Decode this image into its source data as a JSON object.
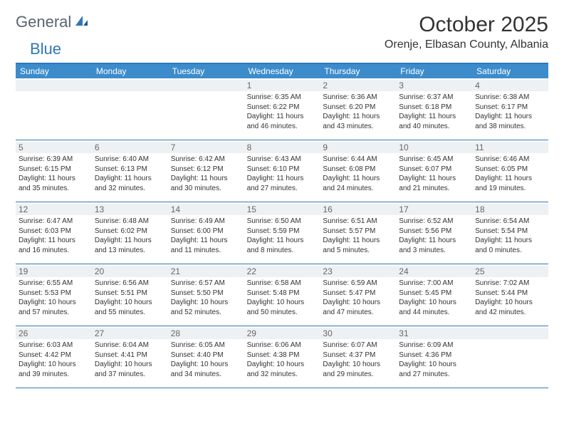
{
  "brand": {
    "part1": "General",
    "part2": "Blue"
  },
  "title": "October 2025",
  "location": "Orenje, Elbasan County, Albania",
  "colors": {
    "header_bar": "#3c8ccc",
    "top_border": "#2f76bb",
    "row_border": "#2f76bb",
    "daynum_bg": "#eef1f4",
    "text": "#333333",
    "logo_gray": "#5a6570",
    "logo_blue": "#2f76bb",
    "background": "#ffffff"
  },
  "days_of_week": [
    "Sunday",
    "Monday",
    "Tuesday",
    "Wednesday",
    "Thursday",
    "Friday",
    "Saturday"
  ],
  "weeks": [
    [
      null,
      null,
      null,
      {
        "n": "1",
        "sr": "Sunrise: 6:35 AM",
        "ss": "Sunset: 6:22 PM",
        "d1": "Daylight: 11 hours",
        "d2": "and 46 minutes."
      },
      {
        "n": "2",
        "sr": "Sunrise: 6:36 AM",
        "ss": "Sunset: 6:20 PM",
        "d1": "Daylight: 11 hours",
        "d2": "and 43 minutes."
      },
      {
        "n": "3",
        "sr": "Sunrise: 6:37 AM",
        "ss": "Sunset: 6:18 PM",
        "d1": "Daylight: 11 hours",
        "d2": "and 40 minutes."
      },
      {
        "n": "4",
        "sr": "Sunrise: 6:38 AM",
        "ss": "Sunset: 6:17 PM",
        "d1": "Daylight: 11 hours",
        "d2": "and 38 minutes."
      }
    ],
    [
      {
        "n": "5",
        "sr": "Sunrise: 6:39 AM",
        "ss": "Sunset: 6:15 PM",
        "d1": "Daylight: 11 hours",
        "d2": "and 35 minutes."
      },
      {
        "n": "6",
        "sr": "Sunrise: 6:40 AM",
        "ss": "Sunset: 6:13 PM",
        "d1": "Daylight: 11 hours",
        "d2": "and 32 minutes."
      },
      {
        "n": "7",
        "sr": "Sunrise: 6:42 AM",
        "ss": "Sunset: 6:12 PM",
        "d1": "Daylight: 11 hours",
        "d2": "and 30 minutes."
      },
      {
        "n": "8",
        "sr": "Sunrise: 6:43 AM",
        "ss": "Sunset: 6:10 PM",
        "d1": "Daylight: 11 hours",
        "d2": "and 27 minutes."
      },
      {
        "n": "9",
        "sr": "Sunrise: 6:44 AM",
        "ss": "Sunset: 6:08 PM",
        "d1": "Daylight: 11 hours",
        "d2": "and 24 minutes."
      },
      {
        "n": "10",
        "sr": "Sunrise: 6:45 AM",
        "ss": "Sunset: 6:07 PM",
        "d1": "Daylight: 11 hours",
        "d2": "and 21 minutes."
      },
      {
        "n": "11",
        "sr": "Sunrise: 6:46 AM",
        "ss": "Sunset: 6:05 PM",
        "d1": "Daylight: 11 hours",
        "d2": "and 19 minutes."
      }
    ],
    [
      {
        "n": "12",
        "sr": "Sunrise: 6:47 AM",
        "ss": "Sunset: 6:03 PM",
        "d1": "Daylight: 11 hours",
        "d2": "and 16 minutes."
      },
      {
        "n": "13",
        "sr": "Sunrise: 6:48 AM",
        "ss": "Sunset: 6:02 PM",
        "d1": "Daylight: 11 hours",
        "d2": "and 13 minutes."
      },
      {
        "n": "14",
        "sr": "Sunrise: 6:49 AM",
        "ss": "Sunset: 6:00 PM",
        "d1": "Daylight: 11 hours",
        "d2": "and 11 minutes."
      },
      {
        "n": "15",
        "sr": "Sunrise: 6:50 AM",
        "ss": "Sunset: 5:59 PM",
        "d1": "Daylight: 11 hours",
        "d2": "and 8 minutes."
      },
      {
        "n": "16",
        "sr": "Sunrise: 6:51 AM",
        "ss": "Sunset: 5:57 PM",
        "d1": "Daylight: 11 hours",
        "d2": "and 5 minutes."
      },
      {
        "n": "17",
        "sr": "Sunrise: 6:52 AM",
        "ss": "Sunset: 5:56 PM",
        "d1": "Daylight: 11 hours",
        "d2": "and 3 minutes."
      },
      {
        "n": "18",
        "sr": "Sunrise: 6:54 AM",
        "ss": "Sunset: 5:54 PM",
        "d1": "Daylight: 11 hours",
        "d2": "and 0 minutes."
      }
    ],
    [
      {
        "n": "19",
        "sr": "Sunrise: 6:55 AM",
        "ss": "Sunset: 5:53 PM",
        "d1": "Daylight: 10 hours",
        "d2": "and 57 minutes."
      },
      {
        "n": "20",
        "sr": "Sunrise: 6:56 AM",
        "ss": "Sunset: 5:51 PM",
        "d1": "Daylight: 10 hours",
        "d2": "and 55 minutes."
      },
      {
        "n": "21",
        "sr": "Sunrise: 6:57 AM",
        "ss": "Sunset: 5:50 PM",
        "d1": "Daylight: 10 hours",
        "d2": "and 52 minutes."
      },
      {
        "n": "22",
        "sr": "Sunrise: 6:58 AM",
        "ss": "Sunset: 5:48 PM",
        "d1": "Daylight: 10 hours",
        "d2": "and 50 minutes."
      },
      {
        "n": "23",
        "sr": "Sunrise: 6:59 AM",
        "ss": "Sunset: 5:47 PM",
        "d1": "Daylight: 10 hours",
        "d2": "and 47 minutes."
      },
      {
        "n": "24",
        "sr": "Sunrise: 7:00 AM",
        "ss": "Sunset: 5:45 PM",
        "d1": "Daylight: 10 hours",
        "d2": "and 44 minutes."
      },
      {
        "n": "25",
        "sr": "Sunrise: 7:02 AM",
        "ss": "Sunset: 5:44 PM",
        "d1": "Daylight: 10 hours",
        "d2": "and 42 minutes."
      }
    ],
    [
      {
        "n": "26",
        "sr": "Sunrise: 6:03 AM",
        "ss": "Sunset: 4:42 PM",
        "d1": "Daylight: 10 hours",
        "d2": "and 39 minutes."
      },
      {
        "n": "27",
        "sr": "Sunrise: 6:04 AM",
        "ss": "Sunset: 4:41 PM",
        "d1": "Daylight: 10 hours",
        "d2": "and 37 minutes."
      },
      {
        "n": "28",
        "sr": "Sunrise: 6:05 AM",
        "ss": "Sunset: 4:40 PM",
        "d1": "Daylight: 10 hours",
        "d2": "and 34 minutes."
      },
      {
        "n": "29",
        "sr": "Sunrise: 6:06 AM",
        "ss": "Sunset: 4:38 PM",
        "d1": "Daylight: 10 hours",
        "d2": "and 32 minutes."
      },
      {
        "n": "30",
        "sr": "Sunrise: 6:07 AM",
        "ss": "Sunset: 4:37 PM",
        "d1": "Daylight: 10 hours",
        "d2": "and 29 minutes."
      },
      {
        "n": "31",
        "sr": "Sunrise: 6:09 AM",
        "ss": "Sunset: 4:36 PM",
        "d1": "Daylight: 10 hours",
        "d2": "and 27 minutes."
      },
      null
    ]
  ]
}
